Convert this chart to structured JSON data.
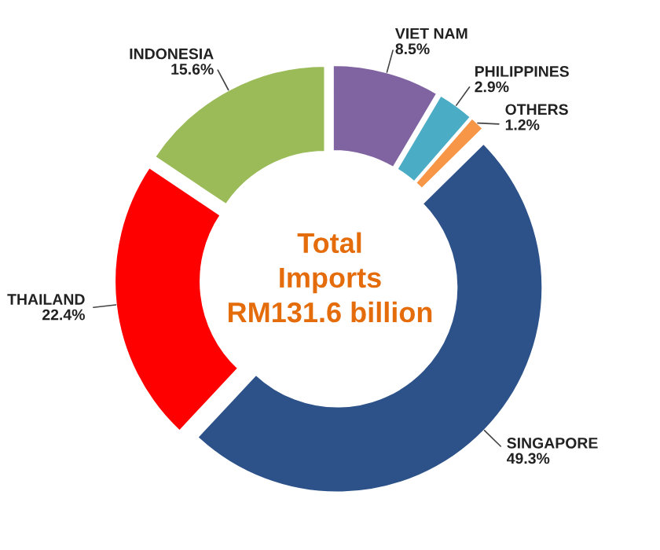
{
  "chart_data": {
    "type": "donut",
    "categories": [
      "VIET NAM",
      "PHILIPPINES",
      "OTHERS",
      "SINGAPORE",
      "THAILAND",
      "INDONESIA"
    ],
    "values": [
      8.5,
      2.9,
      1.2,
      49.3,
      22.4,
      15.6
    ],
    "value_labels": [
      "8.5%",
      "2.9%",
      "1.2%",
      "49.3%",
      "22.4%",
      "15.6%"
    ],
    "colors": [
      "#8064a2",
      "#4bacc6",
      "#f79646",
      "#2c5289",
      "#ff0000",
      "#9bbb59"
    ],
    "annotations": [
      "Total\nImports\nRM131.6 billion"
    ],
    "legend": false
  }
}
